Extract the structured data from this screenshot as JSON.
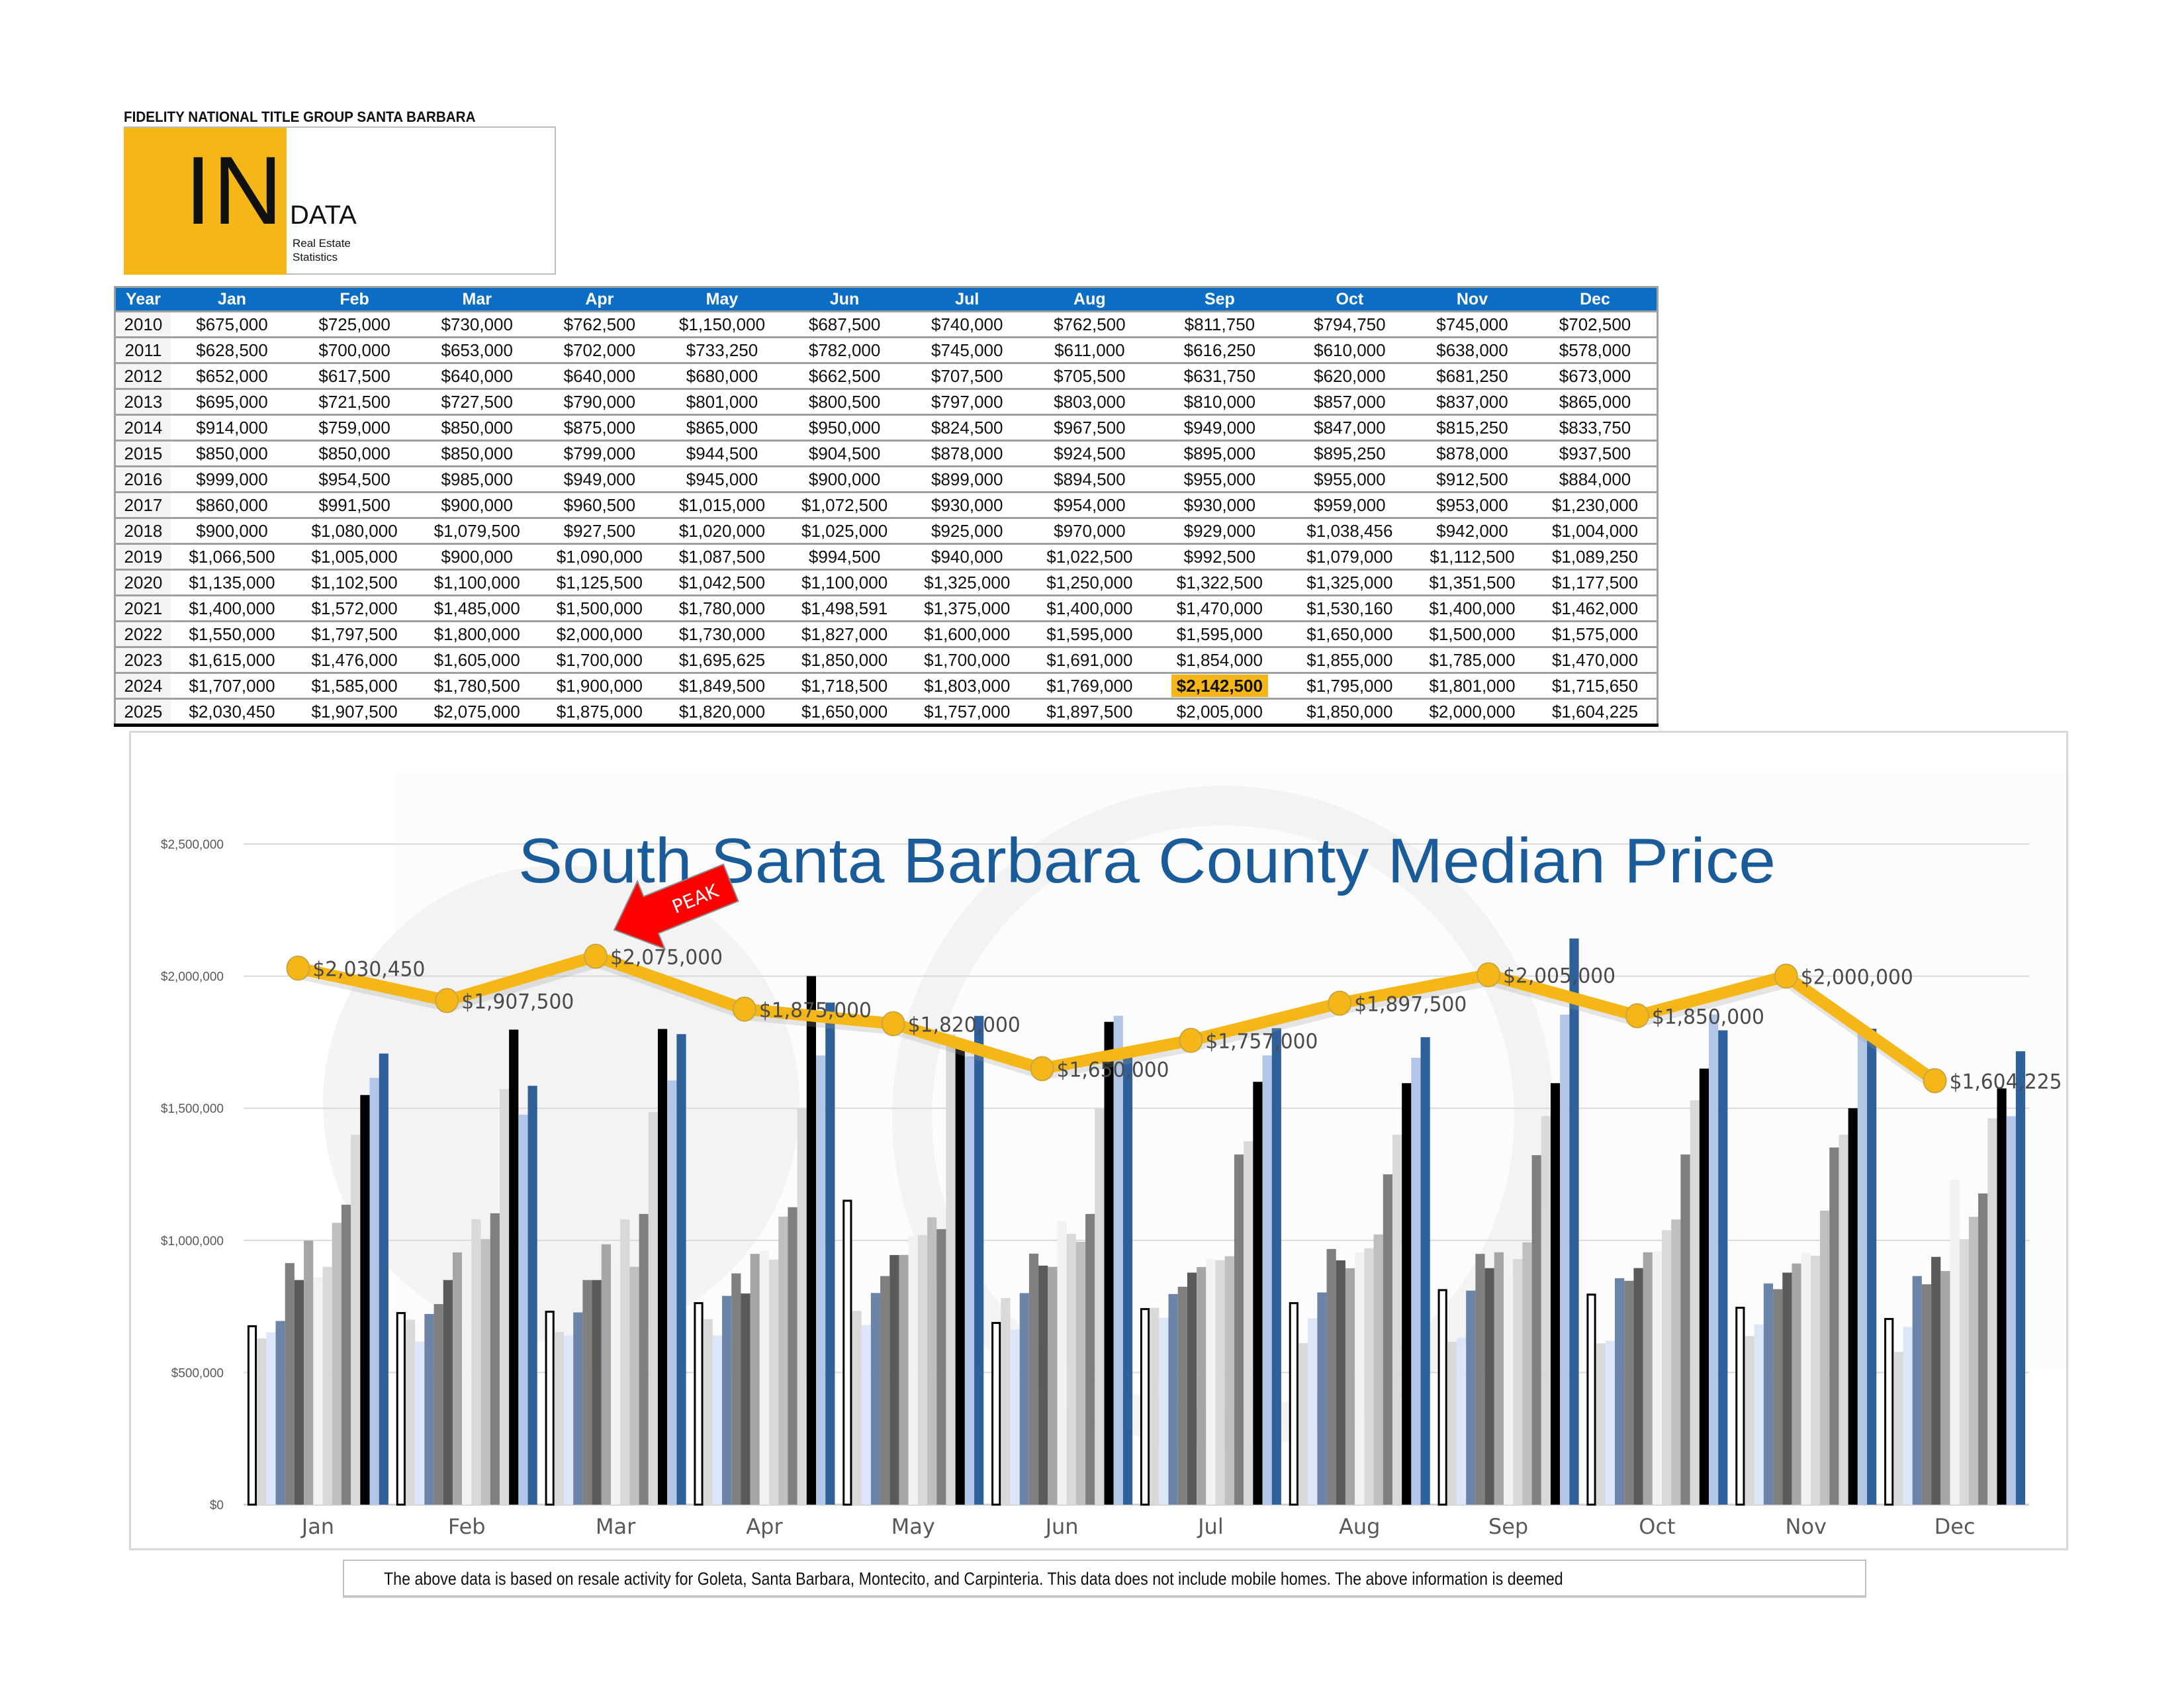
{
  "header": {
    "brand": "FIDELITY NATIONAL TITLE GROUP SANTA BARBARA",
    "logo_big": "IN",
    "logo_word": "DATA",
    "logo_sub1": "Real Estate",
    "logo_sub2": "Statistics"
  },
  "colors": {
    "header_blue": "#0b6dc4",
    "accent_yellow": "#f5b718",
    "title_blue": "#1a5b9a",
    "peak_red": "#ff0000"
  },
  "table": {
    "columns": [
      "Year",
      "Jan",
      "Feb",
      "Mar",
      "Apr",
      "May",
      "Jun",
      "Jul",
      "Aug",
      "Sep",
      "Oct",
      "Nov",
      "Dec"
    ],
    "rows": [
      [
        "2010",
        "$675,000",
        "$725,000",
        "$730,000",
        "$762,500",
        "$1,150,000",
        "$687,500",
        "$740,000",
        "$762,500",
        "$811,750",
        "$794,750",
        "$745,000",
        "$702,500"
      ],
      [
        "2011",
        "$628,500",
        "$700,000",
        "$653,000",
        "$702,000",
        "$733,250",
        "$782,000",
        "$745,000",
        "$611,000",
        "$616,250",
        "$610,000",
        "$638,000",
        "$578,000"
      ],
      [
        "2012",
        "$652,000",
        "$617,500",
        "$640,000",
        "$640,000",
        "$680,000",
        "$662,500",
        "$707,500",
        "$705,500",
        "$631,750",
        "$620,000",
        "$681,250",
        "$673,000"
      ],
      [
        "2013",
        "$695,000",
        "$721,500",
        "$727,500",
        "$790,000",
        "$801,000",
        "$800,500",
        "$797,000",
        "$803,000",
        "$810,000",
        "$857,000",
        "$837,000",
        "$865,000"
      ],
      [
        "2014",
        "$914,000",
        "$759,000",
        "$850,000",
        "$875,000",
        "$865,000",
        "$950,000",
        "$824,500",
        "$967,500",
        "$949,000",
        "$847,000",
        "$815,250",
        "$833,750"
      ],
      [
        "2015",
        "$850,000",
        "$850,000",
        "$850,000",
        "$799,000",
        "$944,500",
        "$904,500",
        "$878,000",
        "$924,500",
        "$895,000",
        "$895,250",
        "$878,000",
        "$937,500"
      ],
      [
        "2016",
        "$999,000",
        "$954,500",
        "$985,000",
        "$949,000",
        "$945,000",
        "$900,000",
        "$899,000",
        "$894,500",
        "$955,000",
        "$955,000",
        "$912,500",
        "$884,000"
      ],
      [
        "2017",
        "$860,000",
        "$991,500",
        "$900,000",
        "$960,500",
        "$1,015,000",
        "$1,072,500",
        "$930,000",
        "$954,000",
        "$930,000",
        "$959,000",
        "$953,000",
        "$1,230,000"
      ],
      [
        "2018",
        "$900,000",
        "$1,080,000",
        "$1,079,500",
        "$927,500",
        "$1,020,000",
        "$1,025,000",
        "$925,000",
        "$970,000",
        "$929,000",
        "$1,038,456",
        "$942,000",
        "$1,004,000"
      ],
      [
        "2019",
        "$1,066,500",
        "$1,005,000",
        "$900,000",
        "$1,090,000",
        "$1,087,500",
        "$994,500",
        "$940,000",
        "$1,022,500",
        "$992,500",
        "$1,079,000",
        "$1,112,500",
        "$1,089,250"
      ],
      [
        "2020",
        "$1,135,000",
        "$1,102,500",
        "$1,100,000",
        "$1,125,500",
        "$1,042,500",
        "$1,100,000",
        "$1,325,000",
        "$1,250,000",
        "$1,322,500",
        "$1,325,000",
        "$1,351,500",
        "$1,177,500"
      ],
      [
        "2021",
        "$1,400,000",
        "$1,572,000",
        "$1,485,000",
        "$1,500,000",
        "$1,780,000",
        "$1,498,591",
        "$1,375,000",
        "$1,400,000",
        "$1,470,000",
        "$1,530,160",
        "$1,400,000",
        "$1,462,000"
      ],
      [
        "2022",
        "$1,550,000",
        "$1,797,500",
        "$1,800,000",
        "$2,000,000",
        "$1,730,000",
        "$1,827,000",
        "$1,600,000",
        "$1,595,000",
        "$1,595,000",
        "$1,650,000",
        "$1,500,000",
        "$1,575,000"
      ],
      [
        "2023",
        "$1,615,000",
        "$1,476,000",
        "$1,605,000",
        "$1,700,000",
        "$1,695,625",
        "$1,850,000",
        "$1,700,000",
        "$1,691,000",
        "$1,854,000",
        "$1,855,000",
        "$1,785,000",
        "$1,470,000"
      ],
      [
        "2024",
        "$1,707,000",
        "$1,585,000",
        "$1,780,500",
        "$1,900,000",
        "$1,849,500",
        "$1,718,500",
        "$1,803,000",
        "$1,769,000",
        "$2,142,500",
        "$1,795,000",
        "$1,801,000",
        "$1,715,650"
      ],
      [
        "2025",
        "$2,030,450",
        "$1,907,500",
        "$2,075,000",
        "$1,875,000",
        "$1,820,000",
        "$1,650,000",
        "$1,757,000",
        "$1,897,500",
        "$2,005,000",
        "$1,850,000",
        "$2,000,000",
        "$1,604,225"
      ]
    ],
    "highlight": {
      "row": 14,
      "col": 9
    }
  },
  "chart_data": {
    "type": "bar",
    "title": "South Santa Barbara County Median Price",
    "xlabel": "",
    "ylabel": "",
    "categories": [
      "Jan",
      "Feb",
      "Mar",
      "Apr",
      "May",
      "Jun",
      "Jul",
      "Aug",
      "Sep",
      "Oct",
      "Nov",
      "Dec"
    ],
    "ylim": [
      0,
      2500000
    ],
    "yticks": [
      0,
      500000,
      1000000,
      1500000,
      2000000,
      2500000
    ],
    "ytick_labels": [
      "$0",
      "$500,000",
      "$1,000,000",
      "$1,500,000",
      "$2,000,000",
      "$2,500,000"
    ],
    "grid": true,
    "legend": "none",
    "series": [
      {
        "name": "2010",
        "kind": "bar",
        "color": "#ffffff",
        "outline": "#000000",
        "values": [
          675000,
          725000,
          730000,
          762500,
          1150000,
          687500,
          740000,
          762500,
          811750,
          794750,
          745000,
          702500
        ]
      },
      {
        "name": "2011",
        "kind": "bar",
        "color": "#d9d9d9",
        "values": [
          628500,
          700000,
          653000,
          702000,
          733250,
          782000,
          745000,
          611000,
          616250,
          610000,
          638000,
          578000
        ]
      },
      {
        "name": "2012",
        "kind": "bar",
        "color": "#dce6f8",
        "values": [
          652000,
          617500,
          640000,
          640000,
          680000,
          662500,
          707500,
          705500,
          631750,
          620000,
          681250,
          673000
        ]
      },
      {
        "name": "2013",
        "kind": "bar",
        "color": "#6b84a8",
        "values": [
          695000,
          721500,
          727500,
          790000,
          801000,
          800500,
          797000,
          803000,
          810000,
          857000,
          837000,
          865000
        ]
      },
      {
        "name": "2014",
        "kind": "bar",
        "color": "#808080",
        "values": [
          914000,
          759000,
          850000,
          875000,
          865000,
          950000,
          824500,
          967500,
          949000,
          847000,
          815250,
          833750
        ]
      },
      {
        "name": "2015",
        "kind": "bar",
        "color": "#5a5a5a",
        "values": [
          850000,
          850000,
          850000,
          799000,
          944500,
          904500,
          878000,
          924500,
          895000,
          895250,
          878000,
          937500
        ]
      },
      {
        "name": "2016",
        "kind": "bar",
        "color": "#a6a6a6",
        "values": [
          999000,
          954500,
          985000,
          949000,
          945000,
          900000,
          899000,
          894500,
          955000,
          955000,
          912500,
          884000
        ]
      },
      {
        "name": "2017",
        "kind": "bar",
        "color": "#f2f2f2",
        "values": [
          860000,
          991500,
          900000,
          960500,
          1015000,
          1072500,
          930000,
          954000,
          930000,
          959000,
          953000,
          1230000
        ]
      },
      {
        "name": "2018",
        "kind": "bar",
        "color": "#d9d9d9",
        "values": [
          900000,
          1080000,
          1079500,
          927500,
          1020000,
          1025000,
          925000,
          970000,
          929000,
          1038456,
          942000,
          1004000
        ]
      },
      {
        "name": "2019",
        "kind": "bar",
        "color": "#bfbfbf",
        "values": [
          1066500,
          1005000,
          900000,
          1090000,
          1087500,
          994500,
          940000,
          1022500,
          992500,
          1079000,
          1112500,
          1089250
        ]
      },
      {
        "name": "2020",
        "kind": "bar",
        "color": "#7f7f7f",
        "values": [
          1135000,
          1102500,
          1100000,
          1125500,
          1042500,
          1100000,
          1325000,
          1250000,
          1322500,
          1325000,
          1351500,
          1177500
        ]
      },
      {
        "name": "2021",
        "kind": "bar",
        "color": "#d9d9d9",
        "values": [
          1400000,
          1572000,
          1485000,
          1500000,
          1780000,
          1498591,
          1375000,
          1400000,
          1470000,
          1530160,
          1400000,
          1462000
        ]
      },
      {
        "name": "2022",
        "kind": "bar",
        "color": "#000000",
        "values": [
          1550000,
          1797500,
          1800000,
          2000000,
          1730000,
          1827000,
          1600000,
          1595000,
          1595000,
          1650000,
          1500000,
          1575000
        ]
      },
      {
        "name": "2023",
        "kind": "bar",
        "color": "#b4c6e7",
        "values": [
          1615000,
          1476000,
          1605000,
          1700000,
          1695625,
          1850000,
          1700000,
          1691000,
          1854000,
          1855000,
          1785000,
          1470000
        ]
      },
      {
        "name": "2024",
        "kind": "bar",
        "color": "#2e6099",
        "values": [
          1707000,
          1585000,
          1780500,
          1900000,
          1849500,
          1718500,
          1803000,
          1769000,
          2142500,
          1795000,
          1801000,
          1715650
        ]
      },
      {
        "name": "2025",
        "kind": "line",
        "color": "#f5b718",
        "values": [
          2030450,
          1907500,
          2075000,
          1875000,
          1820000,
          1650000,
          1757000,
          1897500,
          2005000,
          1850000,
          2000000,
          1604225
        ],
        "data_labels": [
          "$2,030,450",
          "$1,907,500",
          "$2,075,000",
          "$1,875,000",
          "$1,820,000",
          "$1,650,000",
          "$1,757,000",
          "$1,897,500",
          "$2,005,000",
          "$1,850,000",
          "$2,000,000",
          "$1,604,225"
        ]
      }
    ],
    "annotations": [
      {
        "text": "PEAK",
        "points_to": "Mar",
        "color": "#ff0000"
      }
    ]
  },
  "footer": {
    "text": "The above data is based on resale activity for Goleta, Santa Barbara, Montecito, and Carpinteria.  This data does not include mobile homes.  The above information is deemed"
  }
}
